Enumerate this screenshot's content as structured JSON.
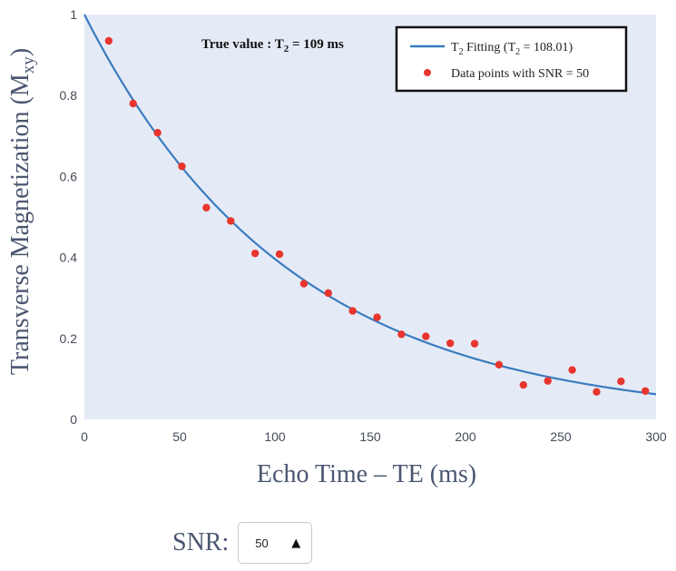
{
  "chart_data": {
    "type": "scatter",
    "annotation": {
      "prefix": "True value : T",
      "sub": "2",
      "suffix": " = 109 ms"
    },
    "xlabel": "Echo Time – TE (ms)",
    "ylabel": {
      "main": "Transverse Magnetization (M",
      "sub": "xy",
      "close": ")"
    },
    "xlim": [
      0,
      300
    ],
    "ylim": [
      0,
      1
    ],
    "x_ticks": [
      0,
      50,
      100,
      150,
      200,
      250,
      300
    ],
    "y_ticks": [
      0,
      0.2,
      0.4,
      0.6,
      0.8,
      1
    ],
    "y_tick_labels": [
      "0",
      "0.2",
      "0.4",
      "0.6",
      "0.8",
      "1"
    ],
    "grid": false,
    "legend_position": "top-right",
    "series": [
      {
        "name": {
          "prefix": "T",
          "sub": "2",
          "suffix": " Fitting (T",
          "sub2": "2",
          "end": " = 108.01)"
        },
        "kind": "line",
        "T2": 108.01,
        "M0": 1,
        "color": "#3b7bbf"
      },
      {
        "name": "Data points with SNR = 50",
        "kind": "scatter",
        "color": "#e8352e",
        "x": [
          12.8,
          25.6,
          38.4,
          51.2,
          64,
          76.8,
          89.6,
          102.4,
          115.2,
          128,
          140.8,
          153.6,
          166.4,
          179.2,
          192,
          204.8,
          217.6,
          230.4,
          243.2,
          256,
          268.8,
          281.6,
          294.4
        ],
        "y": [
          0.935,
          0.78,
          0.708,
          0.625,
          0.523,
          0.49,
          0.41,
          0.408,
          0.335,
          0.312,
          0.268,
          0.252,
          0.21,
          0.205,
          0.188,
          0.187,
          0.135,
          0.085,
          0.095,
          0.122,
          0.068,
          0.094,
          0.07
        ]
      }
    ]
  },
  "snr_control": {
    "label": "SNR:",
    "value": "50",
    "arrow_icon": "triangle-up-icon"
  }
}
